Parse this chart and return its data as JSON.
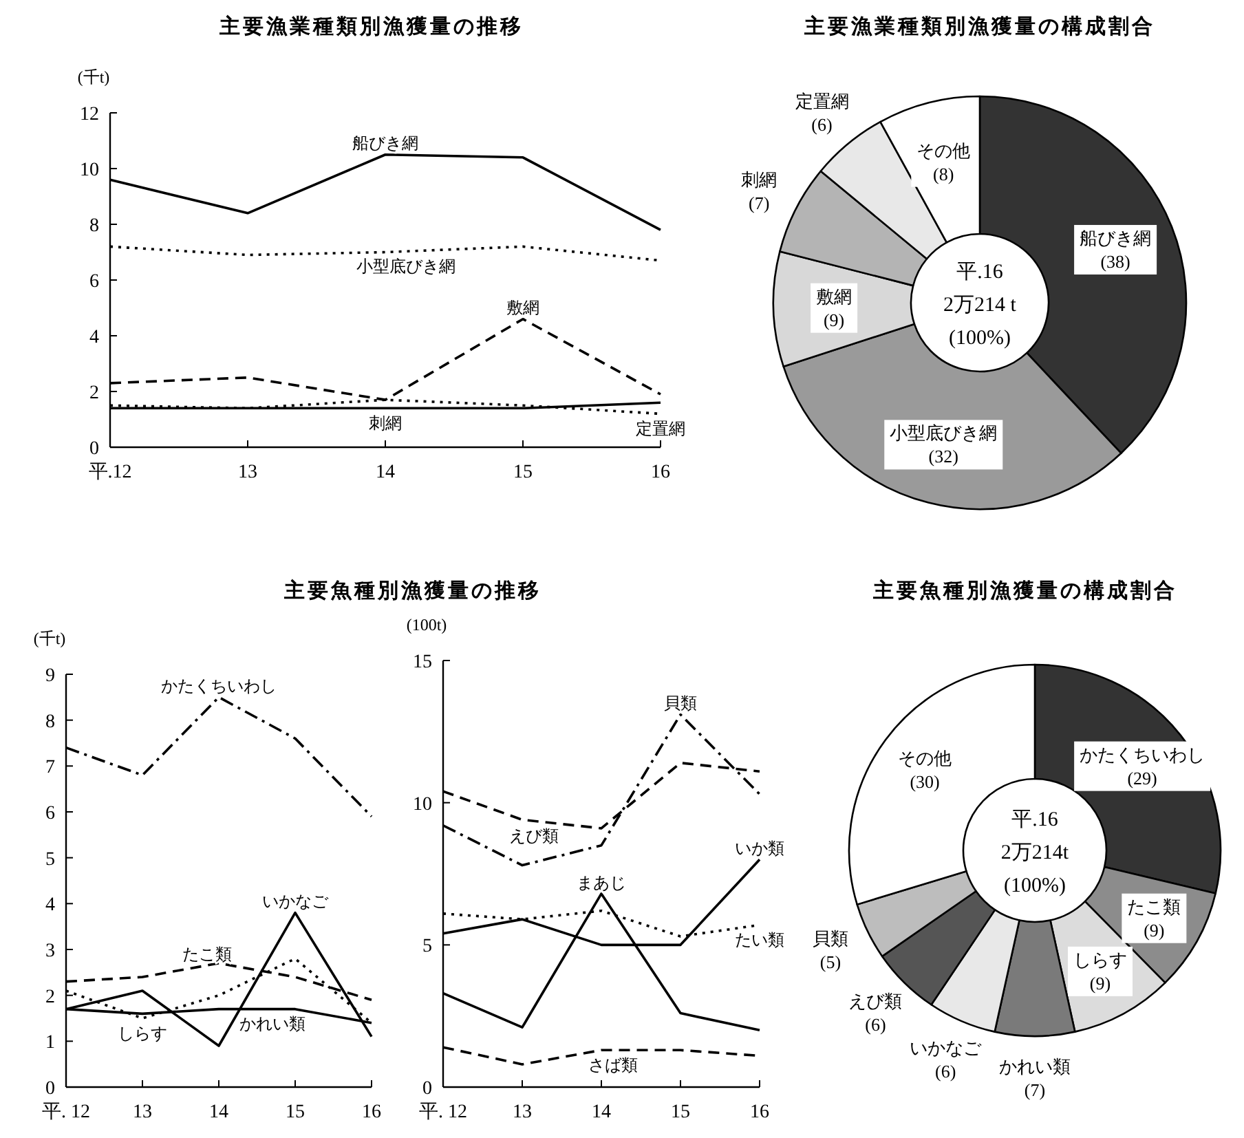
{
  "chart_data": [
    {
      "type": "line",
      "title": "主要漁業種類別漁獲量の推移",
      "ylabel": "(千t)",
      "categories": [
        "平.12",
        "13",
        "14",
        "15",
        "16"
      ],
      "ylim": [
        0,
        12
      ],
      "yticks": [
        0,
        2,
        4,
        6,
        8,
        10,
        12
      ],
      "series": [
        {
          "name": "船びき網",
          "color": "#000000",
          "line_style": "solid",
          "values": [
            9.6,
            8.4,
            10.5,
            10.4,
            7.8
          ]
        },
        {
          "name": "小型底びき網",
          "color": "#000000",
          "line_style": "dotted",
          "values": [
            7.2,
            6.9,
            7.0,
            7.2,
            6.7
          ]
        },
        {
          "name": "敷網",
          "color": "#000000",
          "line_style": "dashed",
          "values": [
            2.3,
            2.5,
            1.7,
            4.6,
            1.9
          ]
        },
        {
          "name": "定置網",
          "color": "#000000",
          "line_style": "dotted",
          "values": [
            1.5,
            1.4,
            1.7,
            1.5,
            1.2
          ]
        },
        {
          "name": "刺網",
          "color": "#000000",
          "line_style": "solid",
          "values": [
            1.4,
            1.4,
            1.4,
            1.4,
            1.6
          ]
        }
      ]
    },
    {
      "type": "donut",
      "title": "主要漁業種類別漁獲量の構成割合",
      "categories": [
        "船びき網",
        "小型底びき網",
        "敷網",
        "刺網",
        "定置網",
        "その他"
      ],
      "values": [
        38,
        32,
        9,
        7,
        6,
        8
      ],
      "colors": [
        "#333333",
        "#9a9a9a",
        "#d8d8d8",
        "#b4b4b4",
        "#e8e8e8",
        "#ffffff"
      ],
      "value_labels": [
        "(38)",
        "(32)",
        "(9)",
        "(7)",
        "(6)",
        "(8)"
      ],
      "annotations": [
        "平.16",
        "2万214 t",
        "(100%)"
      ]
    },
    {
      "type": "line",
      "title": "主要魚種別漁獲量の推移",
      "ylabel": "(千t)",
      "categories": [
        "平. 12",
        "13",
        "14",
        "15",
        "16"
      ],
      "ylim": [
        0,
        9
      ],
      "yticks": [
        0,
        1,
        2,
        3,
        4,
        5,
        6,
        7,
        8,
        9
      ],
      "series": [
        {
          "name": "かたくちいわし",
          "color": "#000000",
          "line_style": "dashdot",
          "values": [
            7.4,
            6.8,
            8.5,
            7.6,
            5.9
          ]
        },
        {
          "name": "たこ類",
          "color": "#000000",
          "line_style": "dashed",
          "values": [
            2.3,
            2.4,
            2.7,
            2.4,
            1.9
          ]
        },
        {
          "name": "しらす",
          "color": "#000000",
          "line_style": "dotted",
          "values": [
            2.1,
            1.5,
            2.0,
            2.8,
            1.4
          ]
        },
        {
          "name": "いかなご",
          "color": "#000000",
          "line_style": "solid",
          "values": [
            1.7,
            2.1,
            0.9,
            3.8,
            1.1
          ]
        },
        {
          "name": "かれい類",
          "color": "#000000",
          "line_style": "solid",
          "values": [
            1.7,
            1.6,
            1.7,
            1.7,
            1.4
          ]
        }
      ]
    },
    {
      "type": "line",
      "ylabel": "(100t)",
      "categories": [
        "平. 12",
        "13",
        "14",
        "15",
        "16"
      ],
      "ylim": [
        0,
        15
      ],
      "yticks": [
        0,
        5,
        10,
        15
      ],
      "series": [
        {
          "name": "貝類",
          "color": "#000000",
          "line_style": "dashdot",
          "values": [
            9.2,
            7.8,
            8.5,
            13.1,
            10.3
          ]
        },
        {
          "name": "えび類",
          "color": "#000000",
          "line_style": "dashed",
          "values": [
            10.4,
            9.4,
            9.1,
            11.4,
            11.1
          ]
        },
        {
          "name": "いか類",
          "color": "#000000",
          "line_style": "solid",
          "values": [
            5.4,
            5.9,
            5.0,
            5.0,
            8.0
          ]
        },
        {
          "name": "たい類",
          "color": "#000000",
          "line_style": "dotted",
          "values": [
            6.1,
            5.9,
            6.2,
            5.3,
            5.7
          ]
        },
        {
          "name": "まあじ",
          "color": "#000000",
          "line_style": "solid",
          "values": [
            3.3,
            2.1,
            6.8,
            2.6,
            2.0
          ]
        },
        {
          "name": "さば類",
          "color": "#000000",
          "line_style": "dashed",
          "values": [
            1.4,
            0.8,
            1.3,
            1.3,
            1.1
          ]
        }
      ]
    },
    {
      "type": "donut",
      "title": "主要魚種別漁獲量の構成割合",
      "categories": [
        "かたくちいわし",
        "たこ類",
        "しらす",
        "かれい類",
        "いかなご",
        "えび類",
        "貝類",
        "その他"
      ],
      "values": [
        29,
        9,
        9,
        7,
        6,
        6,
        5,
        30
      ],
      "colors": [
        "#333333",
        "#8c8c8c",
        "#dcdcdc",
        "#7a7a7a",
        "#e8e8e8",
        "#555555",
        "#bdbdbd",
        "#ffffff"
      ],
      "value_labels": [
        "(29)",
        "(9)",
        "(9)",
        "(7)",
        "(6)",
        "(6)",
        "(5)",
        "(30)"
      ],
      "annotations": [
        "平.16",
        "2万214t",
        "(100%)"
      ]
    }
  ]
}
